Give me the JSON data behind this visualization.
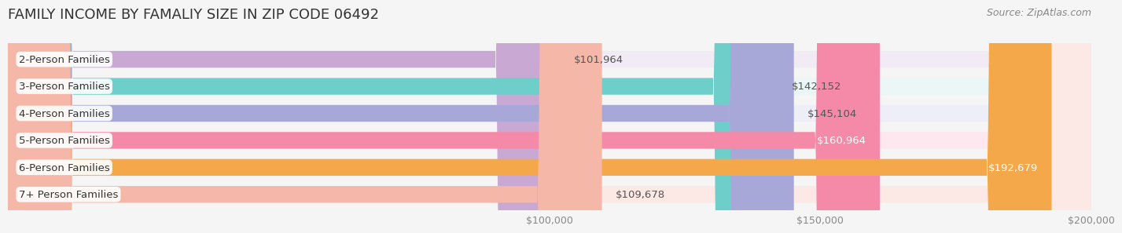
{
  "title": "FAMILY INCOME BY FAMALIY SIZE IN ZIP CODE 06492",
  "source": "Source: ZipAtlas.com",
  "categories": [
    "2-Person Families",
    "3-Person Families",
    "4-Person Families",
    "5-Person Families",
    "6-Person Families",
    "7+ Person Families"
  ],
  "values": [
    101964,
    142152,
    145104,
    160964,
    192679,
    109678
  ],
  "bar_colors": [
    "#c9a8d4",
    "#6ecfca",
    "#a8a8d8",
    "#f589a8",
    "#f5a84a",
    "#f5b8a8"
  ],
  "bar_bg_colors": [
    "#f2eaf5",
    "#eaf7f6",
    "#eeeef8",
    "#fde8ef",
    "#fef0e0",
    "#fce8e4"
  ],
  "label_colors": [
    "#555555",
    "#555555",
    "#555555",
    "#ffffff",
    "#ffffff",
    "#555555"
  ],
  "value_labels": [
    "$101,964",
    "$142,152",
    "$145,104",
    "$160,964",
    "$192,679",
    "$109,678"
  ],
  "xlim": [
    0,
    200000
  ],
  "xticks": [
    100000,
    150000,
    200000
  ],
  "xtick_labels": [
    "$100,000",
    "$150,000",
    "$200,000"
  ],
  "background_color": "#f5f5f5",
  "bar_height": 0.62,
  "title_fontsize": 13,
  "label_fontsize": 9.5,
  "value_fontsize": 9.5,
  "tick_fontsize": 9,
  "source_fontsize": 9
}
